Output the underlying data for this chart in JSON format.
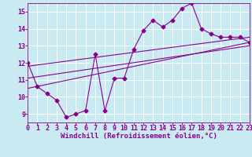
{
  "background_color": "#c8eaf0",
  "line_color": "#8b008b",
  "grid_color": "#ffffff",
  "x_min": 0,
  "x_max": 23,
  "y_min": 8.5,
  "y_max": 15.5,
  "xlabel": "Windchill (Refroidissement éolien,°C)",
  "xlabel_fontsize": 6.5,
  "tick_fontsize": 6,
  "x_ticks": [
    0,
    1,
    2,
    3,
    4,
    5,
    6,
    7,
    8,
    9,
    10,
    11,
    12,
    13,
    14,
    15,
    16,
    17,
    18,
    19,
    20,
    21,
    22,
    23
  ],
  "y_ticks": [
    9,
    10,
    11,
    12,
    13,
    14,
    15
  ],
  "series1_x": [
    0,
    1,
    2,
    3,
    4,
    5,
    6,
    7,
    8,
    9,
    10,
    11,
    12,
    13,
    14,
    15,
    16,
    17,
    18,
    19,
    20,
    21,
    22,
    23
  ],
  "series1_y": [
    12.0,
    10.6,
    10.2,
    9.8,
    8.8,
    9.0,
    9.2,
    12.5,
    9.2,
    11.1,
    11.1,
    12.8,
    13.9,
    14.5,
    14.1,
    14.5,
    15.2,
    15.5,
    14.0,
    13.7,
    13.5,
    13.5,
    13.5,
    13.2
  ],
  "trend1_x": [
    0,
    23
  ],
  "trend1_y": [
    10.5,
    13.2
  ],
  "trend2_x": [
    0,
    23
  ],
  "trend2_y": [
    11.1,
    13.0
  ],
  "trend3_x": [
    0,
    23
  ],
  "trend3_y": [
    11.8,
    13.5
  ]
}
